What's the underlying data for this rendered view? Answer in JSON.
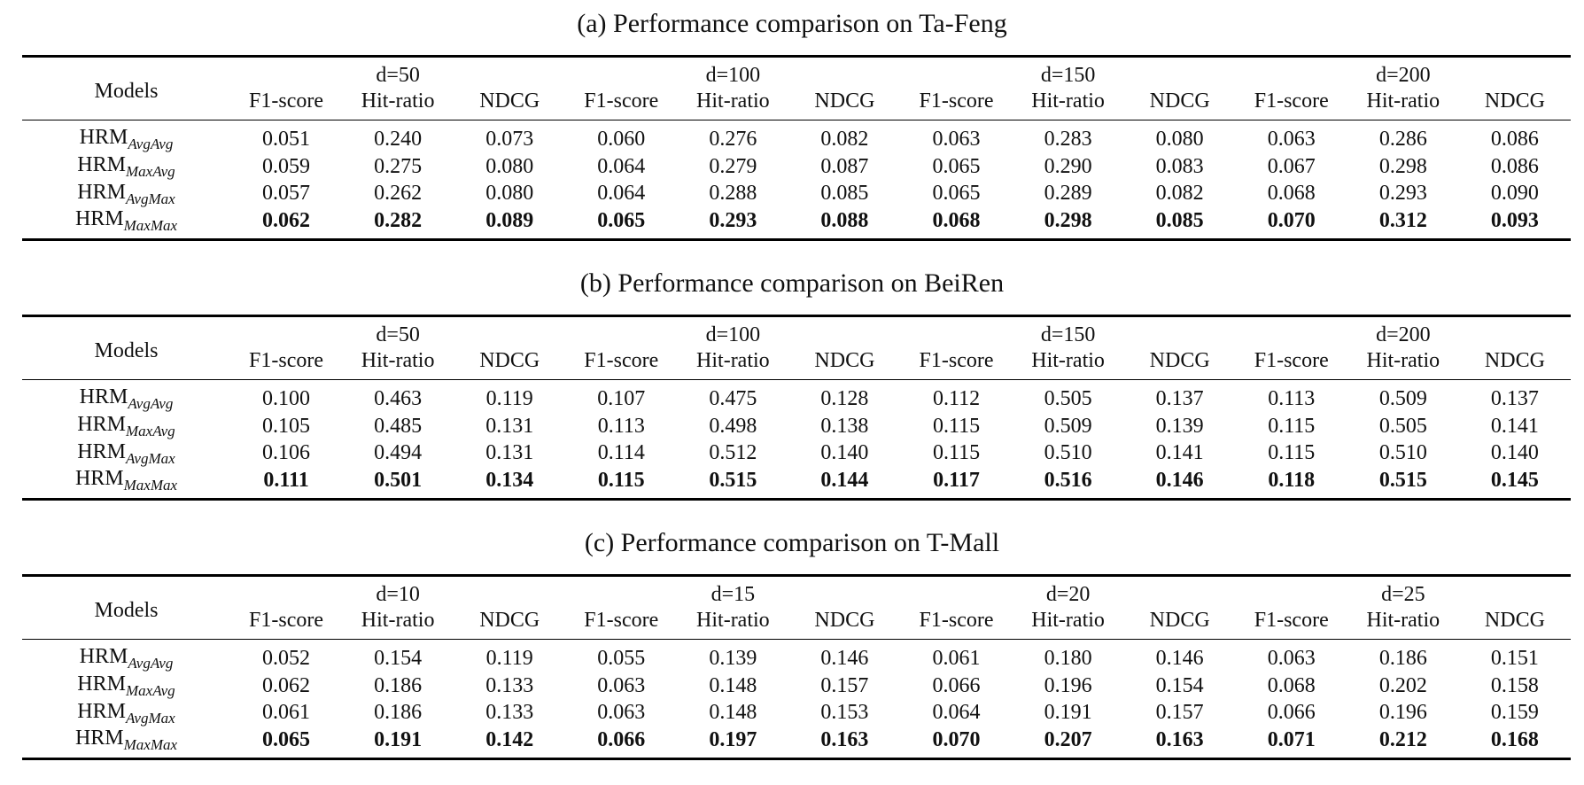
{
  "tables": [
    {
      "title": "(a) Performance comparison on Ta-Feng",
      "header": {
        "models": "Models",
        "groups": [
          "d=50",
          "d=100",
          "d=150",
          "d=200"
        ],
        "metrics": [
          "F1-score",
          "Hit-ratio",
          "NDCG"
        ]
      },
      "rows": [
        {
          "model": "HRM",
          "sub": "AvgAvg",
          "values": [
            "0.051",
            "0.240",
            "0.073",
            "0.060",
            "0.276",
            "0.082",
            "0.063",
            "0.283",
            "0.080",
            "0.063",
            "0.286",
            "0.086"
          ]
        },
        {
          "model": "HRM",
          "sub": "MaxAvg",
          "values": [
            "0.059",
            "0.275",
            "0.080",
            "0.064",
            "0.279",
            "0.087",
            "0.065",
            "0.290",
            "0.083",
            "0.067",
            "0.298",
            "0.086"
          ]
        },
        {
          "model": "HRM",
          "sub": "AvgMax",
          "values": [
            "0.057",
            "0.262",
            "0.080",
            "0.064",
            "0.288",
            "0.085",
            "0.065",
            "0.289",
            "0.082",
            "0.068",
            "0.293",
            "0.090"
          ]
        },
        {
          "model": "HRM",
          "sub": "MaxMax",
          "values": [
            "0.062",
            "0.282",
            "0.089",
            "0.065",
            "0.293",
            "0.088",
            "0.068",
            "0.298",
            "0.085",
            "0.070",
            "0.312",
            "0.093"
          ]
        }
      ]
    },
    {
      "title": "(b) Performance comparison on BeiRen",
      "header": {
        "models": "Models",
        "groups": [
          "d=50",
          "d=100",
          "d=150",
          "d=200"
        ],
        "metrics": [
          "F1-score",
          "Hit-ratio",
          "NDCG"
        ]
      },
      "rows": [
        {
          "model": "HRM",
          "sub": "AvgAvg",
          "values": [
            "0.100",
            "0.463",
            "0.119",
            "0.107",
            "0.475",
            "0.128",
            "0.112",
            "0.505",
            "0.137",
            "0.113",
            "0.509",
            "0.137"
          ]
        },
        {
          "model": "HRM",
          "sub": "MaxAvg",
          "values": [
            "0.105",
            "0.485",
            "0.131",
            "0.113",
            "0.498",
            "0.138",
            "0.115",
            "0.509",
            "0.139",
            "0.115",
            "0.505",
            "0.141"
          ]
        },
        {
          "model": "HRM",
          "sub": "AvgMax",
          "values": [
            "0.106",
            "0.494",
            "0.131",
            "0.114",
            "0.512",
            "0.140",
            "0.115",
            "0.510",
            "0.141",
            "0.115",
            "0.510",
            "0.140"
          ]
        },
        {
          "model": "HRM",
          "sub": "MaxMax",
          "values": [
            "0.111",
            "0.501",
            "0.134",
            "0.115",
            "0.515",
            "0.144",
            "0.117",
            "0.516",
            "0.146",
            "0.118",
            "0.515",
            "0.145"
          ]
        }
      ]
    },
    {
      "title": "(c) Performance comparison on T-Mall",
      "header": {
        "models": "Models",
        "groups": [
          "d=10",
          "d=15",
          "d=20",
          "d=25"
        ],
        "metrics": [
          "F1-score",
          "Hit-ratio",
          "NDCG"
        ]
      },
      "rows": [
        {
          "model": "HRM",
          "sub": "AvgAvg",
          "values": [
            "0.052",
            "0.154",
            "0.119",
            "0.055",
            "0.139",
            "0.146",
            "0.061",
            "0.180",
            "0.146",
            "0.063",
            "0.186",
            "0.151"
          ]
        },
        {
          "model": "HRM",
          "sub": "MaxAvg",
          "values": [
            "0.062",
            "0.186",
            "0.133",
            "0.063",
            "0.148",
            "0.157",
            "0.066",
            "0.196",
            "0.154",
            "0.068",
            "0.202",
            "0.158"
          ]
        },
        {
          "model": "HRM",
          "sub": "AvgMax",
          "values": [
            "0.061",
            "0.186",
            "0.133",
            "0.063",
            "0.148",
            "0.153",
            "0.064",
            "0.191",
            "0.157",
            "0.066",
            "0.196",
            "0.159"
          ]
        },
        {
          "model": "HRM",
          "sub": "MaxMax",
          "values": [
            "0.065",
            "0.191",
            "0.142",
            "0.066",
            "0.197",
            "0.163",
            "0.070",
            "0.207",
            "0.163",
            "0.071",
            "0.212",
            "0.168"
          ]
        }
      ]
    }
  ]
}
